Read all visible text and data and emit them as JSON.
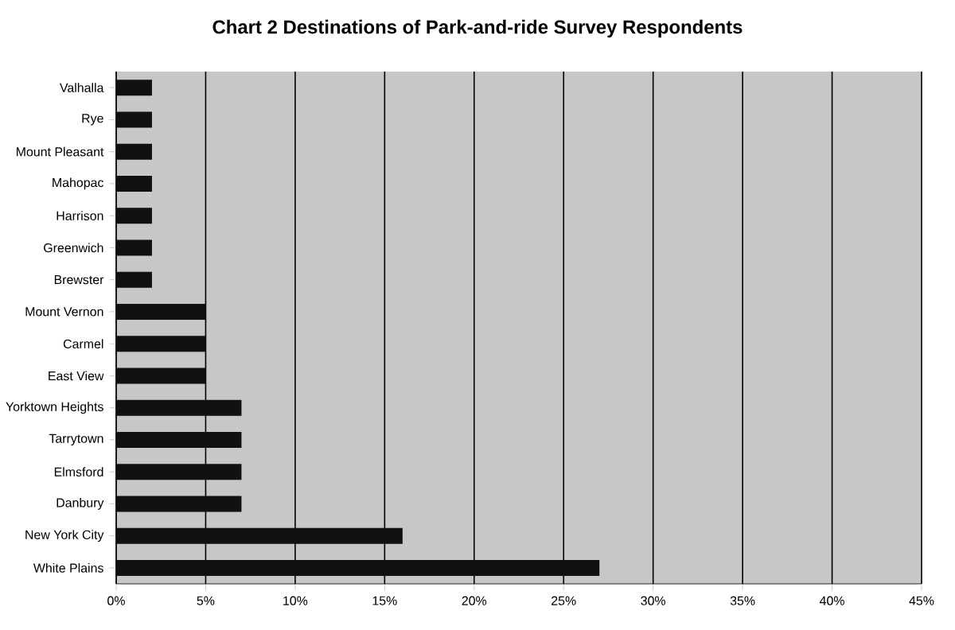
{
  "chart_data": {
    "type": "bar",
    "orientation": "horizontal",
    "title": "Chart 2 Destinations of Park-and-ride Survey Respondents",
    "categories": [
      "Valhalla",
      "Rye",
      "Mount Pleasant",
      "Mahopac",
      "Harrison",
      "Greenwich",
      "Brewster",
      "Mount Vernon",
      "Carmel",
      "East View",
      "Yorktown Heights",
      "Tarrytown",
      "Elmsford",
      "Danbury",
      "New York City",
      "White Plains"
    ],
    "values": [
      2,
      2,
      2,
      2,
      2,
      2,
      2,
      5,
      5,
      5,
      7,
      7,
      7,
      7,
      16,
      27
    ],
    "color": "#111111",
    "xlim": [
      0,
      45
    ],
    "xticks": [
      {
        "value": 0,
        "label": "0%"
      },
      {
        "value": 5,
        "label": "5%"
      },
      {
        "value": 10,
        "label": "10%"
      },
      {
        "value": 15,
        "label": "15%"
      },
      {
        "value": 20,
        "label": "20%"
      },
      {
        "value": 25,
        "label": "25%"
      },
      {
        "value": 30,
        "label": "30%"
      },
      {
        "value": 35,
        "label": "35%"
      },
      {
        "value": 40,
        "label": "40%"
      },
      {
        "value": 45,
        "label": "45%"
      }
    ],
    "grid": "x"
  }
}
